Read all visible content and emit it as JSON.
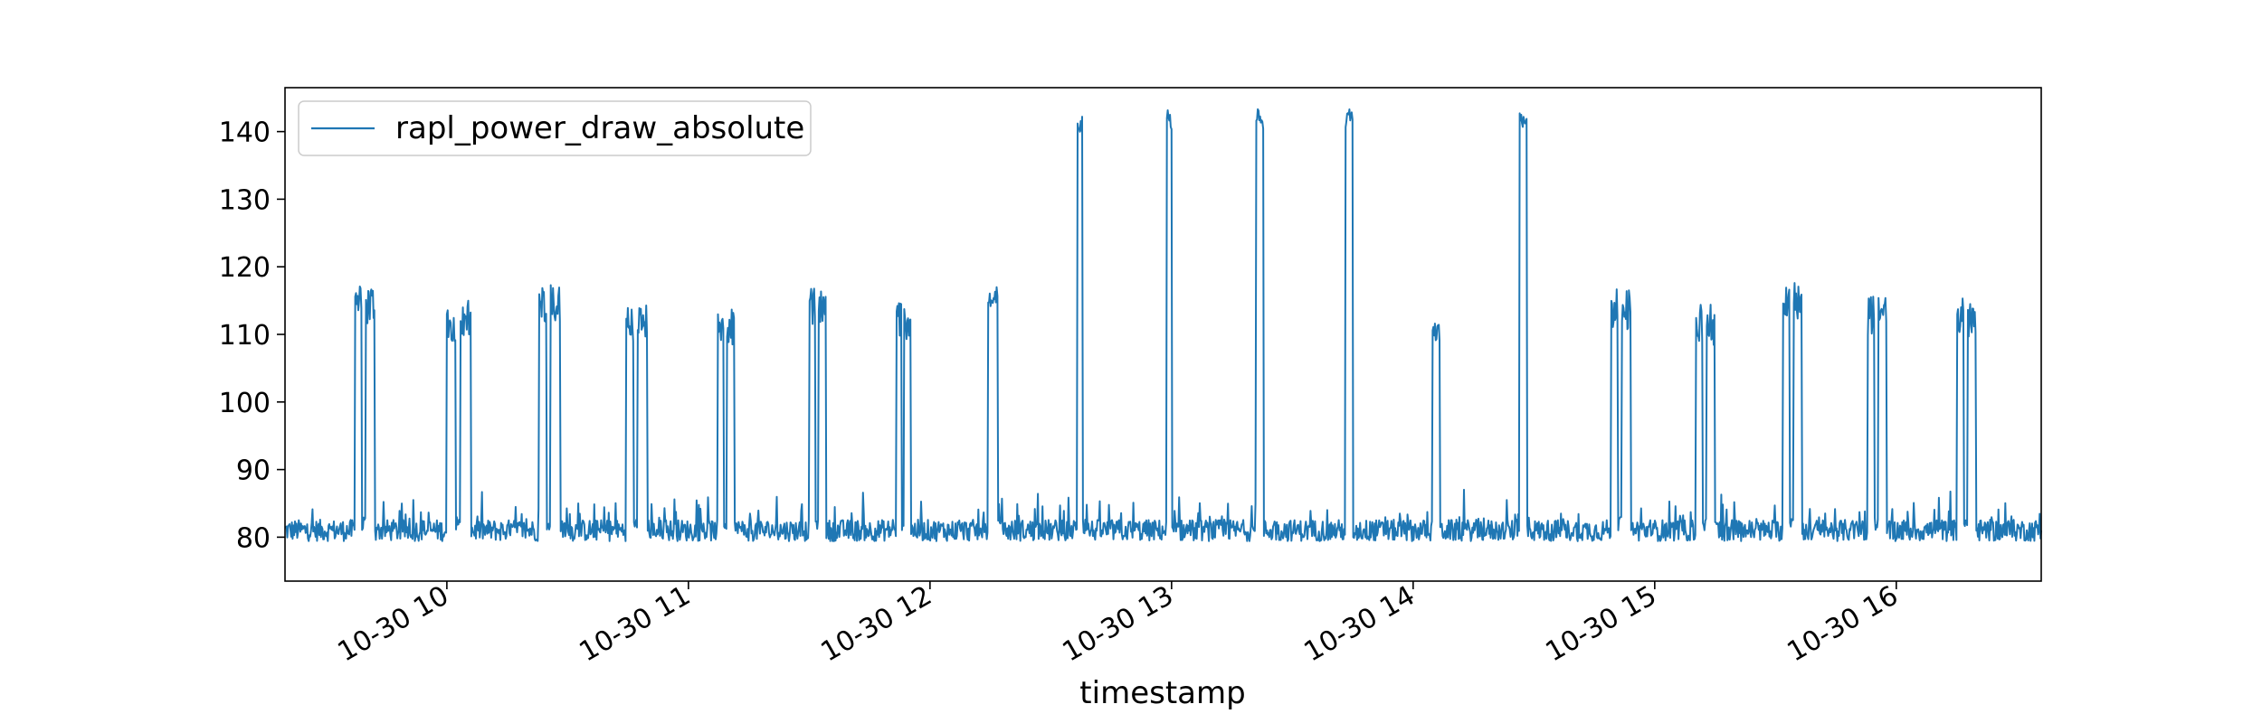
{
  "chart_data": {
    "type": "line",
    "title": "",
    "xlabel": "timestamp",
    "ylabel": "",
    "x_tick_labels": [
      "10-30 10",
      "10-30 11",
      "10-30 12",
      "10-30 13",
      "10-30 14",
      "10-30 15",
      "10-30 16"
    ],
    "x_tick_hours": [
      10,
      11,
      12,
      13,
      14,
      15,
      16
    ],
    "xlim_hours": [
      9.33,
      16.6
    ],
    "y_ticks": [
      80,
      90,
      100,
      110,
      120,
      130,
      140
    ],
    "ylim": [
      73.5,
      146.5
    ],
    "grid": false,
    "legend": {
      "position": "top-left",
      "entries": [
        "rapl_power_draw_absolute"
      ]
    },
    "series": [
      {
        "name": "rapl_power_draw_absolute",
        "color": "#1f77b4",
        "baseline": 81,
        "spikes": [
          {
            "start": 9.62,
            "end": 9.7,
            "peak": 117.5
          },
          {
            "start": 10.0,
            "end": 10.1,
            "peak": 115
          },
          {
            "start": 10.38,
            "end": 10.47,
            "peak": 117.8
          },
          {
            "start": 10.74,
            "end": 10.83,
            "peak": 114.5
          },
          {
            "start": 11.12,
            "end": 11.19,
            "peak": 114.5
          },
          {
            "start": 11.5,
            "end": 11.57,
            "peak": 116.8
          },
          {
            "start": 11.86,
            "end": 11.92,
            "peak": 115.2
          },
          {
            "start": 12.24,
            "end": 12.28,
            "peak": 117
          },
          {
            "start": 12.61,
            "end": 12.63,
            "peak": 142.7
          },
          {
            "start": 12.98,
            "end": 13.0,
            "peak": 143.2
          },
          {
            "start": 13.35,
            "end": 13.38,
            "peak": 143.4
          },
          {
            "start": 13.72,
            "end": 13.75,
            "peak": 143.4
          },
          {
            "start": 14.08,
            "end": 14.11,
            "peak": 112
          },
          {
            "start": 14.44,
            "end": 14.47,
            "peak": 143.3
          },
          {
            "start": 14.82,
            "end": 14.9,
            "peak": 116.7
          },
          {
            "start": 15.17,
            "end": 15.25,
            "peak": 114.4
          },
          {
            "start": 15.53,
            "end": 15.61,
            "peak": 117.7
          },
          {
            "start": 15.88,
            "end": 15.96,
            "peak": 115.8
          },
          {
            "start": 16.25,
            "end": 16.33,
            "peak": 115.6
          }
        ]
      }
    ]
  }
}
